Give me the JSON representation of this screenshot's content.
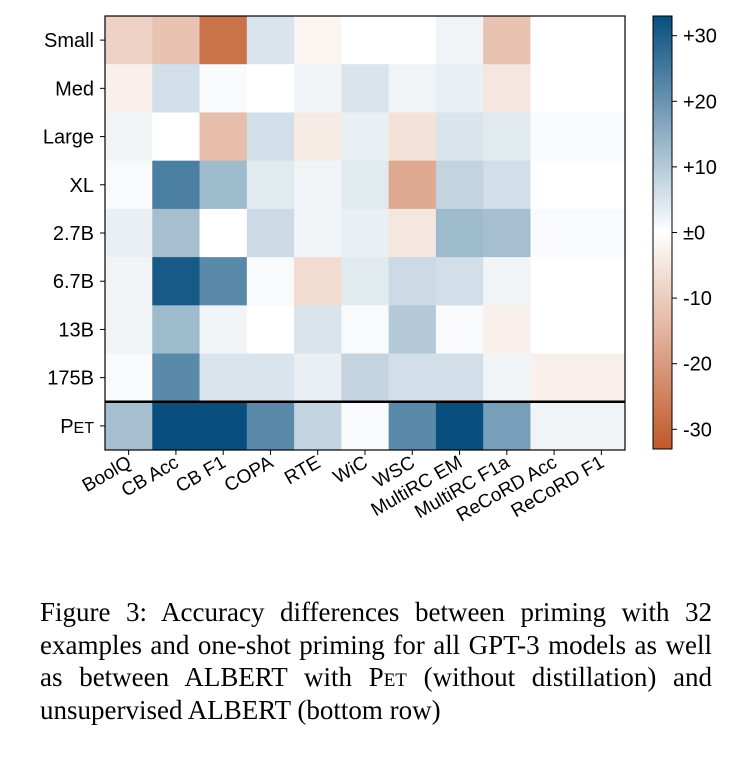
{
  "chart_data": {
    "type": "heatmap",
    "rows": [
      "Small",
      "Med",
      "Large",
      "XL",
      "2.7B",
      "6.7B",
      "13B",
      "175B",
      "PET"
    ],
    "columns": [
      "BoolQ",
      "CB Acc",
      "CB F1",
      "COPA",
      "RTE",
      "WiC",
      "WSC",
      "MultiRC EM",
      "MultiRC F1a",
      "ReCoRD Acc",
      "ReCoRD F1"
    ],
    "values": [
      [
        -9,
        -12,
        -28,
        5,
        -2,
        0,
        0,
        2,
        -12,
        0,
        0
      ],
      [
        -3,
        6,
        1,
        0,
        2,
        5,
        2,
        3,
        -5,
        0,
        0
      ],
      [
        2,
        0,
        -13,
        6,
        -4,
        3,
        -6,
        5,
        4,
        1,
        1
      ],
      [
        1,
        24,
        13,
        4,
        2,
        4,
        -17,
        8,
        6,
        0,
        0
      ],
      [
        3,
        12,
        0,
        7,
        2,
        3,
        -5,
        13,
        12,
        1,
        1
      ],
      [
        2,
        31,
        22,
        1,
        -7,
        4,
        7,
        6,
        2,
        0,
        0
      ],
      [
        2,
        13,
        2,
        0,
        5,
        1,
        10,
        1,
        -3,
        0,
        0
      ],
      [
        1,
        22,
        5,
        5,
        3,
        8,
        6,
        6,
        2,
        -3,
        -3
      ],
      [
        12,
        33,
        33,
        22,
        8,
        1,
        22,
        33,
        18,
        2,
        2
      ]
    ],
    "colorbar": {
      "ticks": [
        "+30",
        "+20",
        "+10",
        "±0",
        "-10",
        "-20",
        "-30"
      ],
      "range": [
        -33,
        33
      ]
    },
    "colors": {
      "positive": "#084f7f",
      "neutral": "#ffffff",
      "negative": "#c0592a"
    }
  },
  "caption": {
    "prefix": "Figure 3: Accuracy differences between priming with 32 examples and one-shot priming for all GPT-3 models as well as between ALBERT with ",
    "pet": "Pet",
    "suffix": " (without distillation) and unsupervised ALBERT (bottom row)"
  }
}
